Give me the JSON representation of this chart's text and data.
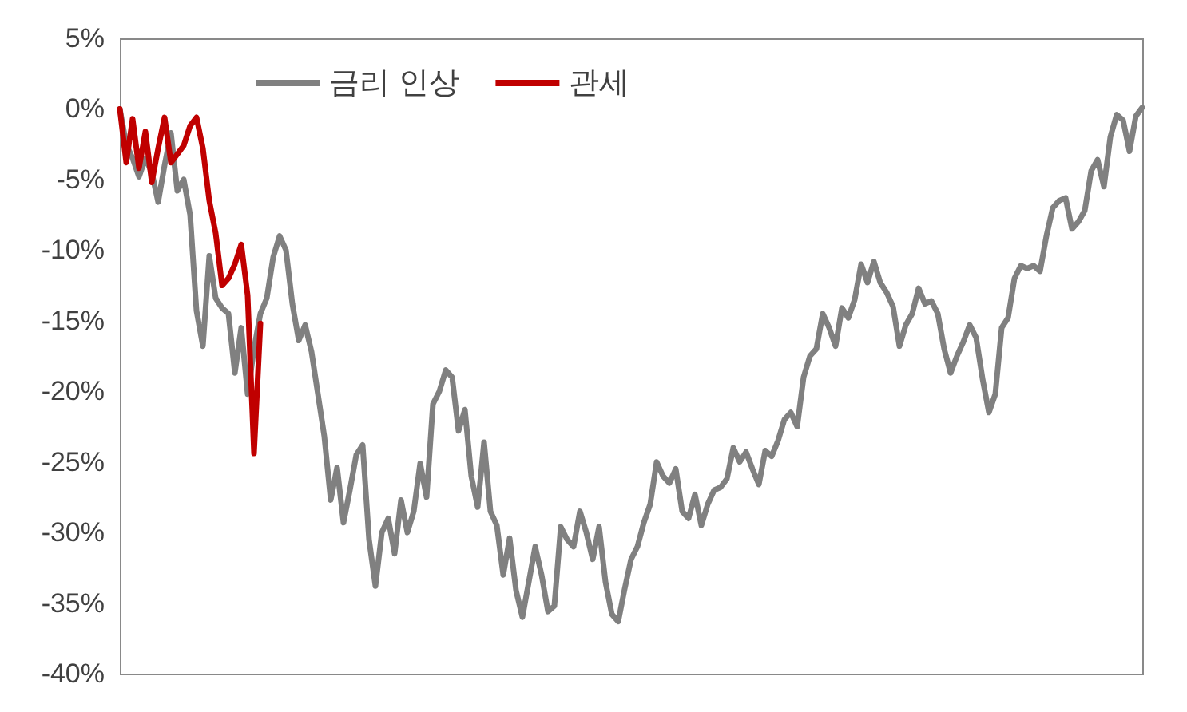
{
  "chart_data": {
    "type": "line",
    "categories": [
      null,
      null,
      null,
      null,
      null,
      null,
      null,
      null,
      null,
      null,
      null,
      null,
      null,
      null,
      null,
      null,
      null,
      null,
      null,
      null,
      null,
      null,
      null,
      null,
      null,
      null,
      null,
      null,
      null,
      null,
      null,
      null,
      null,
      null,
      null,
      null,
      null,
      null,
      null,
      null,
      null,
      null,
      null,
      null,
      null,
      null,
      null,
      null,
      null,
      null,
      null,
      null,
      null,
      null,
      null,
      null,
      null,
      null,
      null,
      null,
      null,
      null,
      null,
      null,
      null,
      null,
      null,
      null,
      null,
      null,
      null,
      null,
      null,
      null,
      null,
      null,
      null,
      null,
      null,
      null,
      null,
      null,
      null,
      null,
      null,
      null,
      null,
      null,
      null,
      null,
      null,
      null,
      null,
      null,
      null,
      null,
      null,
      null,
      null,
      null,
      null,
      null,
      null,
      null,
      null,
      null,
      null,
      null,
      null,
      null,
      null,
      null,
      null,
      null,
      null,
      null,
      null,
      null,
      null,
      null,
      null,
      null,
      null,
      null,
      null,
      null,
      null,
      null,
      null,
      null,
      null,
      null,
      null,
      null,
      null,
      null,
      null,
      null,
      null,
      null,
      null,
      null,
      null,
      null,
      null,
      null,
      null,
      null,
      null,
      null,
      null,
      null,
      null,
      null,
      null,
      null,
      null,
      null,
      null,
      null,
      null
    ],
    "series": [
      {
        "name": "금리 인상",
        "color": "#808080",
        "values": [
          0,
          -2.5,
          -3.5,
          -4.8,
          -3.5,
          -4.5,
          -6.6,
          -4,
          -1.7,
          -5.8,
          -5,
          -7.5,
          -14.3,
          -16.8,
          -10.4,
          -13.4,
          -14.1,
          -14.5,
          -18.7,
          -15.5,
          -20.2,
          -17,
          -14.5,
          -13.4,
          -10.5,
          -9,
          -10,
          -13.8,
          -16.4,
          -15.3,
          -17.2,
          -20.2,
          -23.2,
          -27.7,
          -25.4,
          -29.3,
          -27,
          -24.5,
          -23.8,
          -30.5,
          -33.8,
          -30,
          -29,
          -31.5,
          -27.7,
          -30,
          -28.5,
          -25.1,
          -27.5,
          -20.9,
          -20,
          -18.5,
          -19,
          -22.8,
          -21.3,
          -26,
          -28.2,
          -23.6,
          -28.5,
          -29.5,
          -33,
          -30.4,
          -34.1,
          -36,
          -33.5,
          -31,
          -33,
          -35.6,
          -35.2,
          -29.6,
          -30.5,
          -31,
          -28.5,
          -30,
          -31.9,
          -29.6,
          -33.5,
          -35.8,
          -36.3,
          -34,
          -31.9,
          -31,
          -29.3,
          -28,
          -25,
          -26,
          -26.5,
          -25.5,
          -28.5,
          -29,
          -27.3,
          -29.5,
          -28,
          -27,
          -26.8,
          -26.2,
          -24,
          -25,
          -24.3,
          -25.5,
          -26.6,
          -24.2,
          -24.6,
          -23.5,
          -22,
          -21.5,
          -22.5,
          -19,
          -17.5,
          -17,
          -14.5,
          -15.5,
          -16.8,
          -14.1,
          -14.8,
          -13.5,
          -11,
          -12.3,
          -10.8,
          -12.3,
          -13,
          -14,
          -16.8,
          -15.3,
          -14.5,
          -12.7,
          -13.8,
          -13.6,
          -14.5,
          -17,
          -18.7,
          -17.5,
          -16.5,
          -15.3,
          -16.2,
          -19.1,
          -21.5,
          -20.2,
          -15.5,
          -14.8,
          -12,
          -11.1,
          -11.3,
          -11.1,
          -11.5,
          -9,
          -7,
          -6.5,
          -6.3,
          -8.5,
          -8,
          -7.2,
          -4.4,
          -3.6,
          -5.5,
          -2,
          -0.4,
          -0.8,
          -3,
          -0.5,
          0.1
        ]
      },
      {
        "name": "관세",
        "color": "#c00000",
        "values": [
          0,
          -3.8,
          -0.7,
          -4.2,
          -1.6,
          -5.2,
          -2.8,
          -0.6,
          -3.8,
          -3.2,
          -2.6,
          -1.2,
          -0.6,
          -2.8,
          -6.5,
          -8.8,
          -12.5,
          -12,
          -11,
          -9.6,
          -13.2,
          -24.4,
          -15.2,
          null,
          null,
          null,
          null,
          null,
          null,
          null,
          null,
          null,
          null,
          null,
          null,
          null,
          null,
          null,
          null,
          null,
          null,
          null,
          null,
          null,
          null,
          null,
          null,
          null,
          null,
          null,
          null,
          null,
          null,
          null,
          null,
          null,
          null,
          null,
          null,
          null,
          null,
          null,
          null,
          null,
          null,
          null,
          null,
          null,
          null,
          null,
          null,
          null,
          null,
          null,
          null,
          null,
          null,
          null,
          null,
          null,
          null,
          null,
          null,
          null,
          null,
          null,
          null,
          null,
          null,
          null,
          null,
          null,
          null,
          null,
          null,
          null,
          null,
          null,
          null,
          null,
          null,
          null,
          null,
          null,
          null,
          null,
          null,
          null,
          null,
          null,
          null,
          null,
          null,
          null,
          null,
          null,
          null,
          null,
          null,
          null,
          null,
          null,
          null,
          null,
          null,
          null,
          null,
          null,
          null,
          null,
          null,
          null,
          null,
          null,
          null,
          null,
          null,
          null,
          null,
          null,
          null,
          null,
          null,
          null,
          null,
          null,
          null,
          null,
          null,
          null,
          null,
          null,
          null,
          null,
          null,
          null,
          null,
          null,
          null,
          null,
          null
        ]
      }
    ],
    "ylim": [
      -40,
      5
    ],
    "yticks": [
      {
        "value": 5,
        "label": "5%"
      },
      {
        "value": 0,
        "label": "0%"
      },
      {
        "value": -5,
        "label": "-5%"
      },
      {
        "value": -10,
        "label": "-10%"
      },
      {
        "value": -15,
        "label": "-15%"
      },
      {
        "value": -20,
        "label": "-20%"
      },
      {
        "value": -25,
        "label": "-25%"
      },
      {
        "value": -30,
        "label": "-30%"
      },
      {
        "value": -35,
        "label": "-35%"
      },
      {
        "value": -40,
        "label": "-40%"
      }
    ],
    "tick_labels": "y",
    "grid": false,
    "legend": "top",
    "line_style": "solid"
  }
}
